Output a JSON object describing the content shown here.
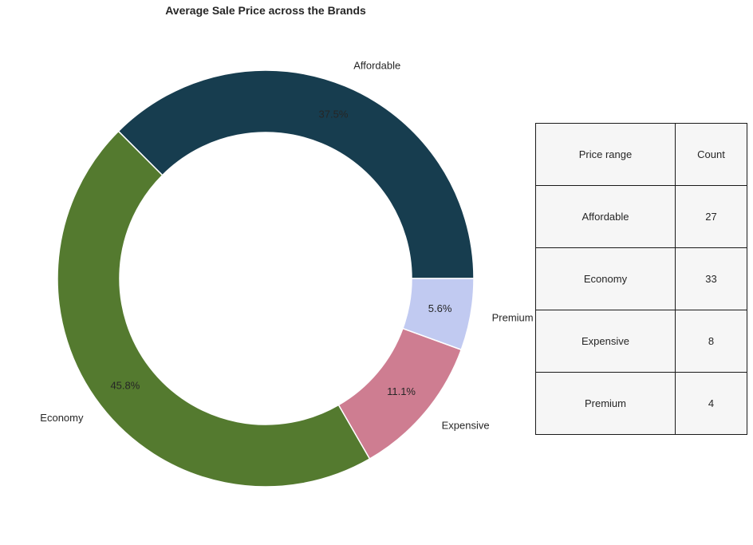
{
  "chart_data": {
    "type": "pie",
    "style": "donut",
    "title": "Average Sale Price across the Brands",
    "slices": [
      {
        "label": "Affordable",
        "count": 27,
        "percent_label": "37.5%",
        "color": "#173d4f"
      },
      {
        "label": "Economy",
        "count": 33,
        "percent_label": "45.8%",
        "color": "#547a2f"
      },
      {
        "label": "Expensive",
        "count": 8,
        "percent_label": "11.1%",
        "color": "#ce7d91"
      },
      {
        "label": "Premium",
        "count": 4,
        "percent_label": "5.6%",
        "color": "#c1caf1"
      }
    ]
  },
  "table": {
    "headers": [
      "Price range",
      "Count"
    ],
    "rows": [
      [
        "Affordable",
        "27"
      ],
      [
        "Economy",
        "33"
      ],
      [
        "Expensive",
        "8"
      ],
      [
        "Premium",
        "4"
      ]
    ]
  }
}
